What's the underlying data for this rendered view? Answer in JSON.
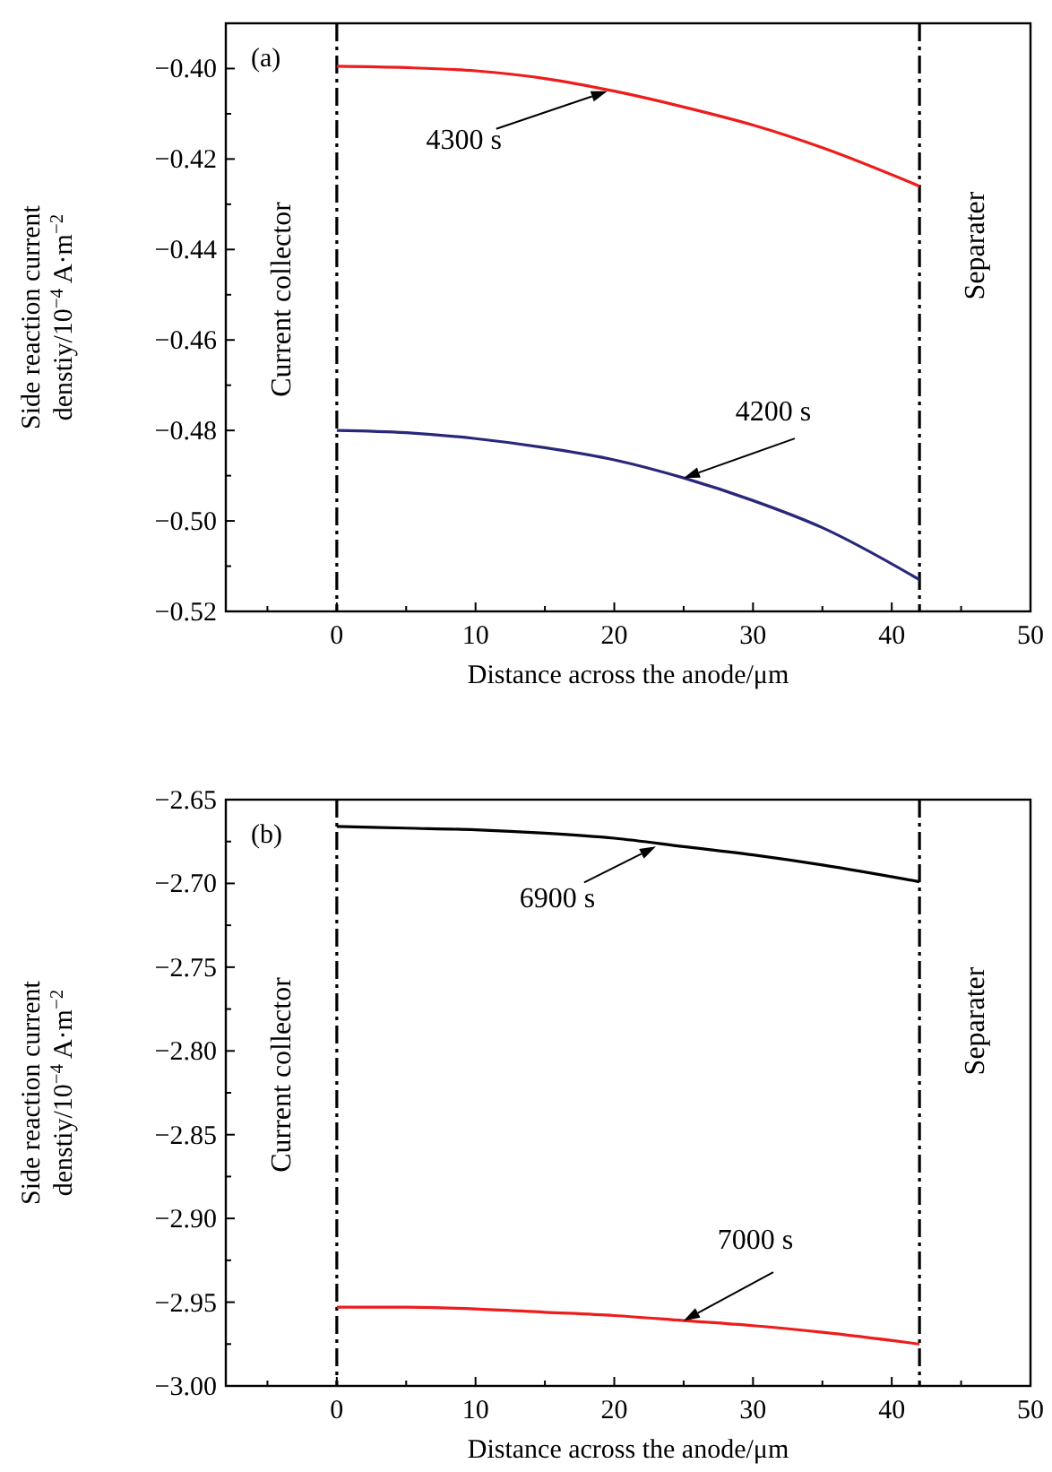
{
  "chart_data": [
    {
      "type": "line",
      "title": "(a)",
      "xlabel": "Distance across the anode/μm",
      "ylabel": "Side reaction current\ndenstiy/10$^{−4}$ A·m$^{−2}$",
      "x": [
        0,
        5,
        10,
        15,
        20,
        25,
        30,
        35,
        42
      ],
      "series": [
        {
          "color": "#ee1c1c",
          "values": [
            -0.3995,
            -0.3998,
            -0.4005,
            -0.4022,
            -0.405,
            -0.4085,
            -0.4125,
            -0.4175,
            -0.426
          ]
        },
        {
          "color": "#27287a",
          "values": [
            -0.48,
            -0.4805,
            -0.4818,
            -0.4838,
            -0.4865,
            -0.4905,
            -0.4955,
            -0.5015,
            -0.513
          ]
        }
      ],
      "xlim": [
        -8,
        50
      ],
      "xticks": [
        {
          "value": -5,
          "label": null
        },
        0,
        {
          "value": 5,
          "label": null
        },
        10,
        {
          "value": 15,
          "label": null
        },
        20,
        {
          "value": 25,
          "label": null
        },
        30,
        {
          "value": 35,
          "label": null
        },
        40,
        {
          "value": 45,
          "label": null
        },
        50
      ],
      "ylim": [
        -0.52,
        -0.39
      ],
      "yticks": [
        {
          "value": -0.4,
          "label": "−0.40"
        },
        {
          "value": -0.41,
          "label": null
        },
        {
          "value": -0.42,
          "label": "−0.42"
        },
        {
          "value": -0.43,
          "label": null
        },
        {
          "value": -0.44,
          "label": "−0.44"
        },
        {
          "value": -0.45,
          "label": null
        },
        {
          "value": -0.46,
          "label": "−0.46"
        },
        {
          "value": -0.47,
          "label": null
        },
        {
          "value": -0.48,
          "label": "−0.48"
        },
        {
          "value": -0.49,
          "label": null
        },
        {
          "value": -0.5,
          "label": "−0.50"
        },
        {
          "value": -0.51,
          "label": null
        },
        {
          "value": -0.52,
          "label": "−0.52"
        }
      ],
      "ref_lines": [
        {
          "axis": "x",
          "value": 0,
          "color": "#000000",
          "line_style": "dashed"
        },
        {
          "axis": "x",
          "value": 42,
          "color": "#000000",
          "line_style": "dashed"
        }
      ],
      "annotations": [
        {
          "text": "4300 s",
          "x": 19.5,
          "y": -0.405
        },
        {
          "text": "4200 s",
          "x": 25,
          "y": -0.4905
        },
        "Current collector",
        "Separater"
      ],
      "grid": false
    },
    {
      "type": "line",
      "title": "(b)",
      "xlabel": "Distance across the anode/μm",
      "ylabel": "Side reaction current\ndenstiy/10$^{−4}$ A·m$^{−2}$",
      "x": [
        0,
        5,
        10,
        15,
        20,
        25,
        30,
        35,
        42
      ],
      "series": [
        {
          "color": "#000000",
          "values": [
            -2.666,
            -2.667,
            -2.668,
            -2.67,
            -2.673,
            -2.678,
            -2.683,
            -2.689,
            -2.699
          ]
        },
        {
          "color": "#ee1c1c",
          "values": [
            -2.953,
            -2.953,
            -2.954,
            -2.956,
            -2.958,
            -2.961,
            -2.964,
            -2.968,
            -2.975
          ]
        }
      ],
      "xlim": [
        -8,
        50
      ],
      "xticks": [
        {
          "value": -5,
          "label": null
        },
        0,
        {
          "value": 5,
          "label": null
        },
        10,
        {
          "value": 15,
          "label": null
        },
        20,
        {
          "value": 25,
          "label": null
        },
        30,
        {
          "value": 35,
          "label": null
        },
        40,
        {
          "value": 45,
          "label": null
        },
        50
      ],
      "ylim": [
        -3.0,
        -2.65
      ],
      "yticks": [
        {
          "value": -2.65,
          "label": "−2.65"
        },
        {
          "value": -2.675,
          "label": null
        },
        {
          "value": -2.7,
          "label": "−2.70"
        },
        {
          "value": -2.725,
          "label": null
        },
        {
          "value": -2.75,
          "label": "−2.75"
        },
        {
          "value": -2.775,
          "label": null
        },
        {
          "value": -2.8,
          "label": "−2.80"
        },
        {
          "value": -2.825,
          "label": null
        },
        {
          "value": -2.85,
          "label": "−2.85"
        },
        {
          "value": -2.875,
          "label": null
        },
        {
          "value": -2.9,
          "label": "−2.90"
        },
        {
          "value": -2.925,
          "label": null
        },
        {
          "value": -2.95,
          "label": "−2.95"
        },
        {
          "value": -2.975,
          "label": null
        },
        {
          "value": -3.0,
          "label": "−3.00"
        }
      ],
      "ref_lines": [
        {
          "axis": "x",
          "value": 0,
          "color": "#000000",
          "line_style": "dashed"
        },
        {
          "axis": "x",
          "value": 42,
          "color": "#000000",
          "line_style": "dashed"
        }
      ],
      "annotations": [
        {
          "text": "6900 s",
          "x": 23,
          "y": -2.678
        },
        {
          "text": "7000 s",
          "x": 25,
          "y": -2.961
        },
        "Current collector",
        "Separater"
      ],
      "grid": false
    }
  ]
}
